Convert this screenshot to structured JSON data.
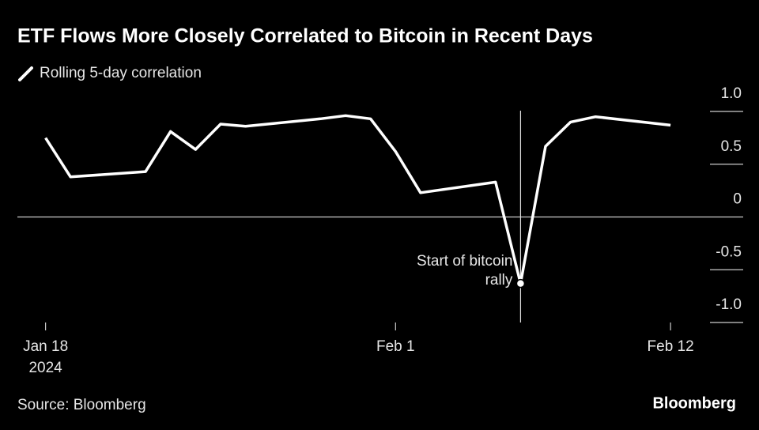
{
  "chart_data": {
    "type": "line",
    "title": "ETF Flows More Closely Correlated to Bitcoin in Recent Days",
    "source": "Source: Bloomberg",
    "brand": "Bloomberg",
    "x": [
      "2024-01-18",
      "2024-01-19",
      "2024-01-22",
      "2024-01-23",
      "2024-01-24",
      "2024-01-25",
      "2024-01-26",
      "2024-01-29",
      "2024-01-30",
      "2024-01-31",
      "2024-02-01",
      "2024-02-02",
      "2024-02-05",
      "2024-02-06",
      "2024-02-07",
      "2024-02-08",
      "2024-02-09",
      "2024-02-12"
    ],
    "series": [
      {
        "name": "Rolling 5-day correlation",
        "color": "#ffffff",
        "values": [
          0.75,
          0.38,
          0.43,
          0.81,
          0.64,
          0.88,
          0.86,
          0.93,
          0.96,
          0.93,
          0.62,
          0.23,
          0.33,
          -0.63,
          0.67,
          0.9,
          0.95,
          0.87
        ]
      }
    ],
    "xlim": [
      "2024-01-17",
      "2024-02-15"
    ],
    "xticks": [
      {
        "value": "2024-01-18",
        "label": "Jan 18",
        "sublabel": "2024"
      },
      {
        "value": "2024-02-01",
        "label": "Feb 1"
      },
      {
        "value": "2024-02-12",
        "label": "Feb 12"
      }
    ],
    "ylim": [
      -1,
      1
    ],
    "yticks": [
      {
        "value": 1,
        "label": "1.0"
      },
      0.5,
      0,
      -0.5,
      {
        "value": -1,
        "label": "-1.0"
      }
    ],
    "annotation": {
      "lines": [
        "Start of bitcoin",
        "rally"
      ],
      "x": "2024-02-06"
    }
  }
}
